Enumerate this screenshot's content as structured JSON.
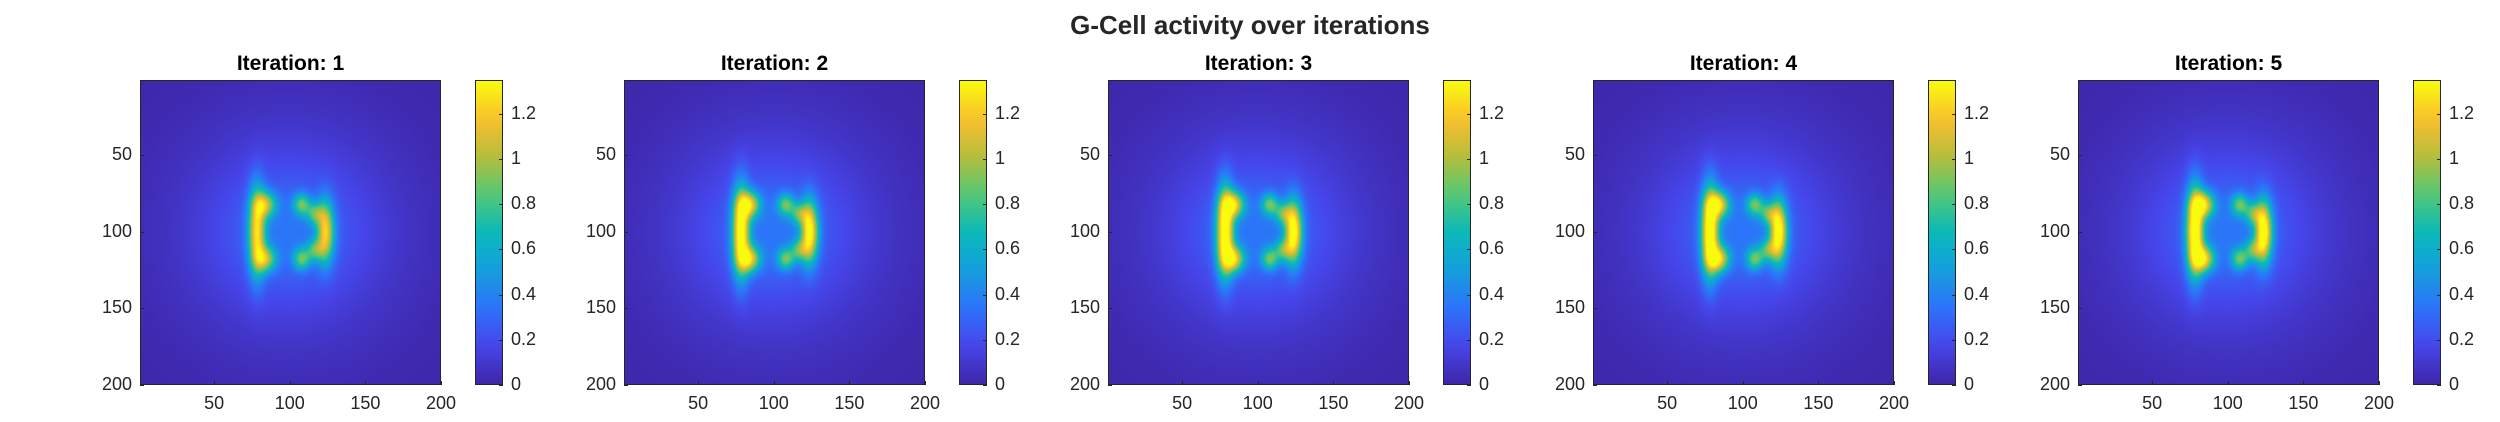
{
  "figure": {
    "title": "G-Cell activity over iterations"
  },
  "chart_data": [
    {
      "type": "heatmap",
      "title": "Iteration: 1",
      "xlim": [
        1,
        200
      ],
      "ylim": [
        1,
        200
      ],
      "xticks": [
        "50",
        "100",
        "150",
        "200"
      ],
      "yticks": [
        "50",
        "100",
        "150",
        "200"
      ],
      "colorbar": {
        "clim": [
          0,
          1.35
        ],
        "ticks": [
          "0",
          "0.2",
          "0.4",
          "0.6",
          "0.8",
          "1",
          "1.2"
        ]
      },
      "peak_value": 1.0,
      "colormap": "parula"
    },
    {
      "type": "heatmap",
      "title": "Iteration: 2",
      "xlim": [
        1,
        200
      ],
      "ylim": [
        1,
        200
      ],
      "xticks": [
        "50",
        "100",
        "150",
        "200"
      ],
      "yticks": [
        "50",
        "100",
        "150",
        "200"
      ],
      "colorbar": {
        "clim": [
          0,
          1.35
        ],
        "ticks": [
          "0",
          "0.2",
          "0.4",
          "0.6",
          "0.8",
          "1",
          "1.2"
        ]
      },
      "peak_value": 1.2,
      "colormap": "parula"
    },
    {
      "type": "heatmap",
      "title": "Iteration: 3",
      "xlim": [
        1,
        200
      ],
      "ylim": [
        1,
        200
      ],
      "xticks": [
        "50",
        "100",
        "150",
        "200"
      ],
      "yticks": [
        "50",
        "100",
        "150",
        "200"
      ],
      "colorbar": {
        "clim": [
          0,
          1.35
        ],
        "ticks": [
          "0",
          "0.2",
          "0.4",
          "0.6",
          "0.8",
          "1",
          "1.2"
        ]
      },
      "peak_value": 1.25,
      "colormap": "parula"
    },
    {
      "type": "heatmap",
      "title": "Iteration: 4",
      "xlim": [
        1,
        200
      ],
      "ylim": [
        1,
        200
      ],
      "xticks": [
        "50",
        "100",
        "150",
        "200"
      ],
      "yticks": [
        "50",
        "100",
        "150",
        "200"
      ],
      "colorbar": {
        "clim": [
          0,
          1.35
        ],
        "ticks": [
          "0",
          "0.2",
          "0.4",
          "0.6",
          "0.8",
          "1",
          "1.2"
        ]
      },
      "peak_value": 1.27,
      "colormap": "parula"
    },
    {
      "type": "heatmap",
      "title": "Iteration: 5",
      "xlim": [
        1,
        200
      ],
      "ylim": [
        1,
        200
      ],
      "xticks": [
        "50",
        "100",
        "150",
        "200"
      ],
      "yticks": [
        "50",
        "100",
        "150",
        "200"
      ],
      "colorbar": {
        "clim": [
          0,
          1.35
        ],
        "ticks": [
          "0",
          "0.2",
          "0.4",
          "0.6",
          "0.8",
          "1",
          "1.2"
        ]
      },
      "peak_value": 1.28,
      "colormap": "parula"
    }
  ]
}
